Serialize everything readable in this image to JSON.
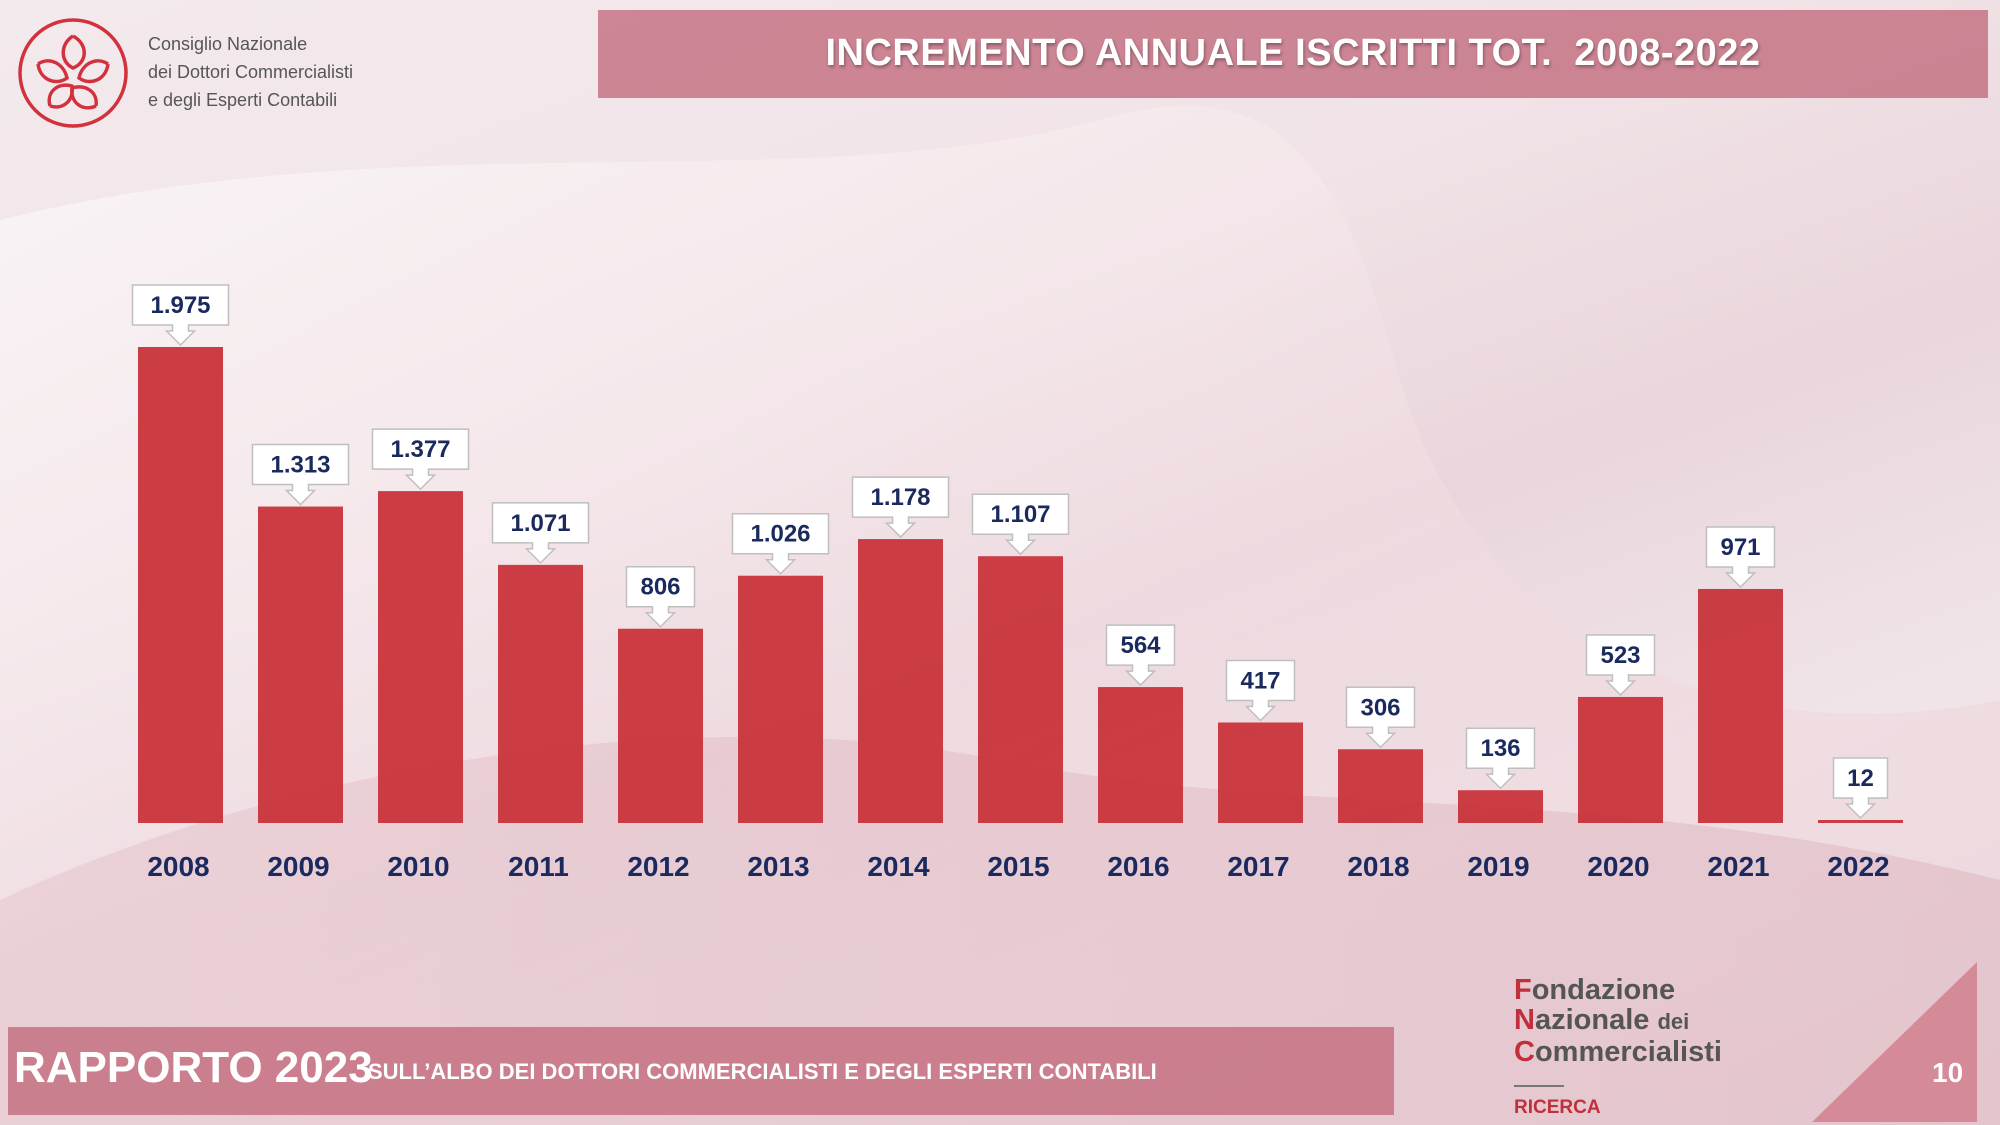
{
  "org": {
    "lines": [
      "Consiglio Nazionale",
      "dei Dottori Commercialisti",
      "e degli Esperti Contabili"
    ]
  },
  "header": {
    "title": "INCREMENTO ANNUALE ISCRITTI TOT.  2008-2022"
  },
  "footer": {
    "report": "RAPPORTO 2023",
    "subtitle": "SULL’ALBO DEI DOTTORI COMMERCIALISTI E DEGLI ESPERTI CONTABILI",
    "page_number": "10"
  },
  "foundation": {
    "line1_initial": "F",
    "line1_rest": "ondazione",
    "line2_initial": "N",
    "line2_rest": "azionale ",
    "line2_small": "dei",
    "line3_initial": "C",
    "line3_rest": "ommercialisti",
    "division": "RICERCA"
  },
  "colors": {
    "bar": "#c8333b",
    "label_text": "#1a2a5e",
    "accent": "#c0303c"
  },
  "chart_data": {
    "type": "bar",
    "title": "INCREMENTO ANNUALE ISCRITTI TOT.  2008-2022",
    "categories": [
      "2008",
      "2009",
      "2010",
      "2011",
      "2012",
      "2013",
      "2014",
      "2015",
      "2016",
      "2017",
      "2018",
      "2019",
      "2020",
      "2021",
      "2022"
    ],
    "values": [
      1975,
      1313,
      1377,
      1071,
      806,
      1026,
      1178,
      1107,
      564,
      417,
      306,
      136,
      523,
      971,
      12
    ],
    "value_labels": [
      "1.975",
      "1.313",
      "1.377",
      "1.071",
      "806",
      "1.026",
      "1.178",
      "1.107",
      "564",
      "417",
      "306",
      "136",
      "523",
      "971",
      "12"
    ],
    "ylim": [
      0,
      1975
    ],
    "grid": false,
    "legend": "none"
  }
}
